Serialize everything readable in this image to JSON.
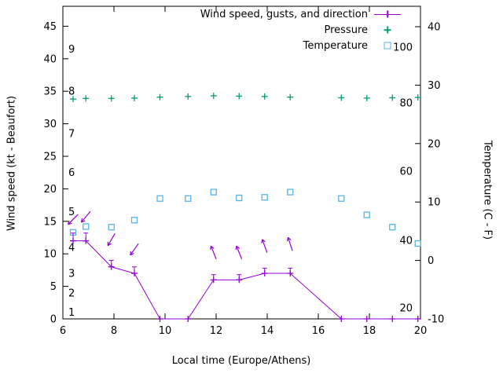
{
  "colors": {
    "wind": "#9400D3",
    "pressure": "#009E73",
    "temperature": "#56B4E9",
    "axis": "#000000",
    "background": "#FFFFFF"
  },
  "chart_data": {
    "type": "line",
    "title": "",
    "x": {
      "label": "Local time (Europe/Athens)",
      "min": 6,
      "max": 20,
      "ticks": [
        6,
        8,
        10,
        12,
        14,
        16,
        18,
        20
      ]
    },
    "y_left": {
      "label": "Wind speed (kt - Beaufort)",
      "min": 0,
      "max": 48,
      "ticks": [
        0,
        5,
        10,
        15,
        20,
        25,
        30,
        35,
        40,
        45
      ],
      "beaufort_scale_labels": [
        {
          "label": "1",
          "kt": 1
        },
        {
          "label": "2",
          "kt": 4
        },
        {
          "label": "3",
          "kt": 7
        },
        {
          "label": "4",
          "kt": 11
        },
        {
          "label": "5",
          "kt": 16.5
        },
        {
          "label": "6",
          "kt": 22.5
        },
        {
          "label": "7",
          "kt": 28.5
        },
        {
          "label": "8",
          "kt": 35
        },
        {
          "label": "9",
          "kt": 41.5
        }
      ]
    },
    "y_right": {
      "label": "Temperature (C - F)",
      "min": -10,
      "max": 43.5,
      "ticks": [
        -10,
        0,
        10,
        20,
        30,
        40
      ]
    },
    "y_inner_right": {
      "labels": [
        {
          "label": "100",
          "kt": 41.8
        },
        {
          "label": "80",
          "kt": 33.2
        },
        {
          "label": "60",
          "kt": 22.7
        },
        {
          "label": "40",
          "kt": 12.1
        },
        {
          "label": "20",
          "kt": 1.7
        }
      ]
    },
    "series": {
      "wind": {
        "name": "Wind speed, gusts, and direction",
        "axis": "left",
        "x": [
          6.4,
          6.9,
          7.9,
          8.8,
          9.8,
          10.9,
          11.9,
          12.9,
          13.9,
          14.9,
          16.9,
          17.9,
          18.9,
          19.9
        ],
        "speed_kt": [
          12,
          12,
          8,
          7,
          0,
          0,
          6,
          6,
          7,
          7,
          0,
          0,
          0,
          0
        ],
        "gust_kt": [
          13.2,
          13.2,
          9,
          8,
          0,
          0,
          6.8,
          6.8,
          7.8,
          7.8,
          0,
          0,
          0,
          0
        ]
      },
      "direction_arrows": {
        "points": [
          {
            "x": 6.4,
            "kt": 15.3,
            "angle_deg": 225
          },
          {
            "x": 6.9,
            "kt": 15.7,
            "angle_deg": 230
          },
          {
            "x": 7.9,
            "kt": 12.2,
            "angle_deg": 240
          },
          {
            "x": 8.8,
            "kt": 10.7,
            "angle_deg": 235
          },
          {
            "x": 11.9,
            "kt": 10.2,
            "angle_deg": 112
          },
          {
            "x": 12.9,
            "kt": 10.2,
            "angle_deg": 112
          },
          {
            "x": 13.9,
            "kt": 11.2,
            "angle_deg": 110
          },
          {
            "x": 14.9,
            "kt": 11.5,
            "angle_deg": 108
          }
        ]
      },
      "pressure": {
        "name": "Pressure",
        "axis": "left-plot-position",
        "x": [
          6.4,
          6.9,
          7.9,
          8.8,
          9.8,
          10.9,
          11.9,
          12.9,
          13.9,
          14.9,
          16.9,
          17.9,
          18.9,
          19.9
        ],
        "y_plot_kt": [
          33.8,
          33.9,
          33.9,
          33.95,
          34.1,
          34.2,
          34.3,
          34.25,
          34.2,
          34.1,
          34.0,
          33.95,
          34.0,
          34.05
        ]
      },
      "temperature": {
        "name": "Temperature",
        "axis": "right",
        "x": [
          6.4,
          6.9,
          7.9,
          8.8,
          9.8,
          10.9,
          11.9,
          12.9,
          13.9,
          14.9,
          16.9,
          17.9,
          18.9,
          19.9
        ],
        "celsius": [
          4.8,
          5.8,
          5.7,
          6.9,
          10.6,
          10.6,
          11.7,
          10.7,
          10.8,
          11.7,
          10.6,
          7.8,
          5.7,
          2.9
        ]
      }
    }
  }
}
